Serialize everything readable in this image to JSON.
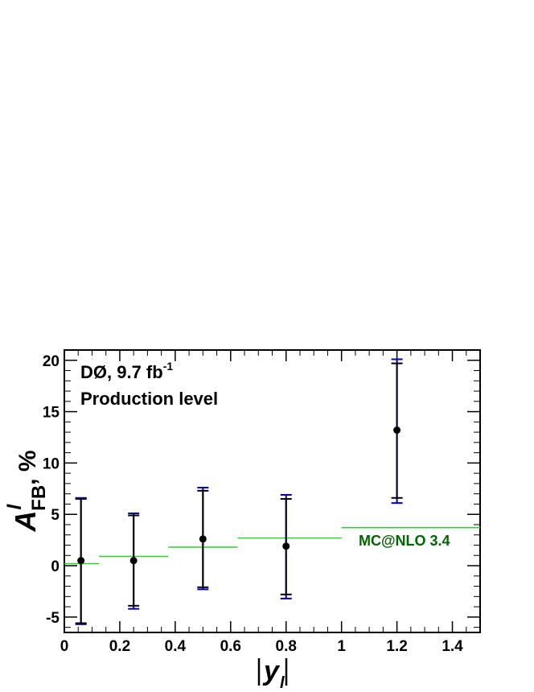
{
  "chart_data": {
    "type": "scatter",
    "xlabel": "|y_l|",
    "xlabel_main": "y",
    "xlabel_sub": "l",
    "ylabel": "A^l_FB, %",
    "ylabel_main": "A",
    "ylabel_sup": "l",
    "ylabel_sub": "FB",
    "ylabel_suffix": ", %",
    "xlim": [
      0,
      1.5
    ],
    "ylim": [
      -6.5,
      21
    ],
    "x_ticks": [
      "0",
      "0.2",
      "0.4",
      "0.6",
      "0.8",
      "1",
      "1.2",
      "1.4"
    ],
    "x_tick_values": [
      0,
      0.2,
      0.4,
      0.6,
      0.8,
      1.0,
      1.2,
      1.4
    ],
    "y_ticks": [
      "-5",
      "0",
      "5",
      "10",
      "15",
      "20"
    ],
    "y_tick_values": [
      -5,
      0,
      5,
      10,
      15,
      20
    ],
    "annotations": {
      "experiment": "DØ, 9.7 fb",
      "experiment_sup": "-1",
      "level": "Production level"
    },
    "series": [
      {
        "name": "Data",
        "color": "#000000",
        "points": [
          {
            "x": 0.06,
            "y": 0.5,
            "stat_lo": -5.6,
            "stat_hi": 6.5,
            "tot_lo": -5.7,
            "tot_hi": 6.6
          },
          {
            "x": 0.25,
            "y": 0.5,
            "stat_lo": -3.9,
            "stat_hi": 4.9,
            "tot_lo": -4.2,
            "tot_hi": 5.1
          },
          {
            "x": 0.5,
            "y": 2.6,
            "stat_lo": -2.1,
            "stat_hi": 7.3,
            "tot_lo": -2.3,
            "tot_hi": 7.6
          },
          {
            "x": 0.8,
            "y": 1.9,
            "stat_lo": -2.8,
            "stat_hi": 6.5,
            "tot_lo": -3.2,
            "tot_hi": 6.9
          },
          {
            "x": 1.2,
            "y": 13.2,
            "stat_lo": 6.6,
            "stat_hi": 19.7,
            "tot_lo": 6.1,
            "tot_hi": 20.1
          }
        ]
      },
      {
        "name": "MC@NLO 3.4",
        "type": "step",
        "color": "#33cc33",
        "label_color": "#006600",
        "bins": [
          {
            "x0": 0.0,
            "x1": 0.125,
            "y": 0.2
          },
          {
            "x0": 0.125,
            "x1": 0.375,
            "y": 0.9
          },
          {
            "x0": 0.375,
            "x1": 0.625,
            "y": 1.8
          },
          {
            "x0": 0.625,
            "x1": 1.0,
            "y": 2.7
          },
          {
            "x0": 1.0,
            "x1": 1.5,
            "y": 3.7
          }
        ]
      }
    ],
    "error_colors": {
      "stat": "#000000",
      "total": "#0000aa"
    },
    "grid": false,
    "legend": "none"
  }
}
